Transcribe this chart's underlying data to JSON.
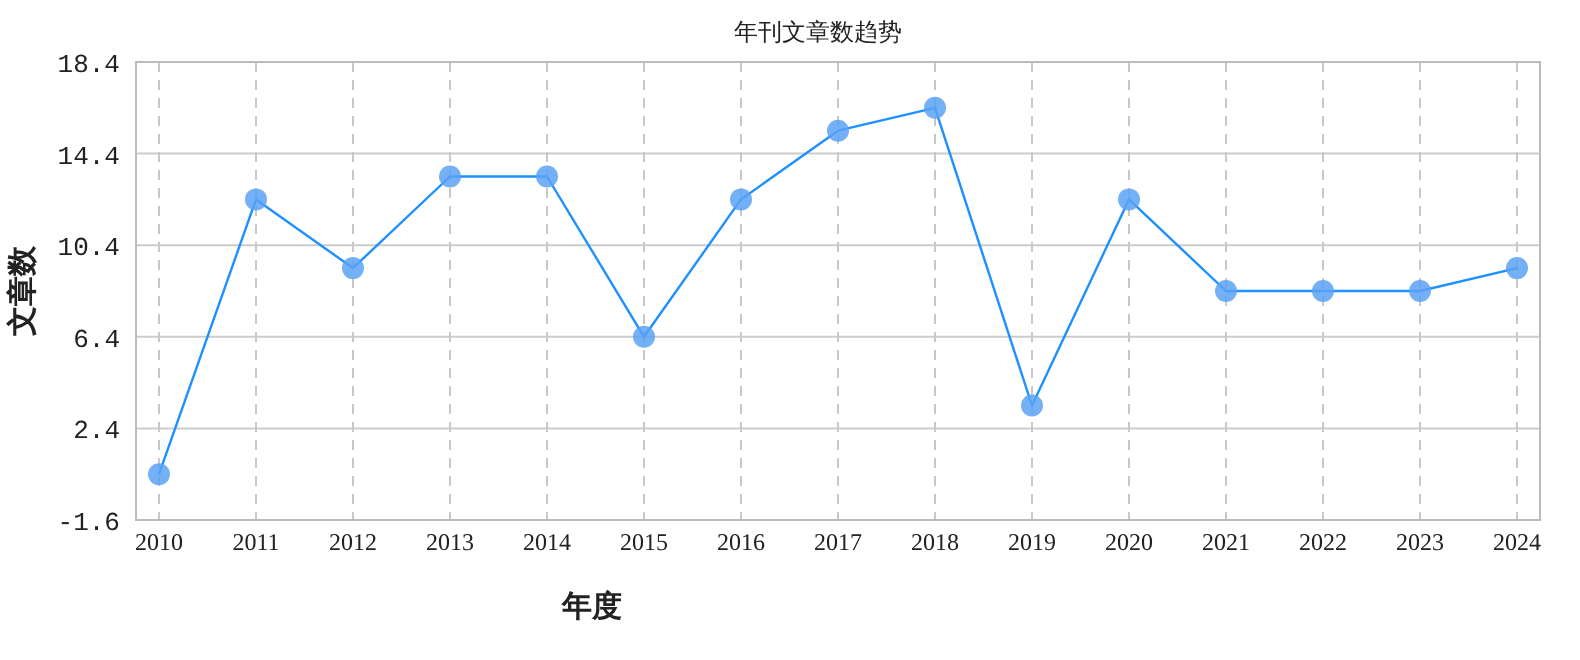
{
  "chart_data": {
    "type": "line",
    "title": "年刊文章数趋势",
    "xlabel": "年度",
    "ylabel": "文章数",
    "categories": [
      "2010",
      "2011",
      "2012",
      "2013",
      "2014",
      "2015",
      "2016",
      "2017",
      "2018",
      "2019",
      "2020",
      "2021",
      "2022",
      "2023",
      "2024"
    ],
    "series": [
      {
        "color": "#1e90ff",
        "values": [
          0.4,
          12.4,
          9.4,
          13.4,
          13.4,
          6.4,
          12.4,
          15.4,
          16.4,
          3.4,
          12.4,
          8.4,
          8.4,
          8.4,
          9.4
        ]
      }
    ],
    "ylim": [
      -1.6,
      18.4
    ],
    "yticks": [
      -1.6,
      2.4,
      6.4,
      10.4,
      14.4,
      18.4
    ],
    "grid": true,
    "marker": "circle",
    "line_style": "solid"
  }
}
